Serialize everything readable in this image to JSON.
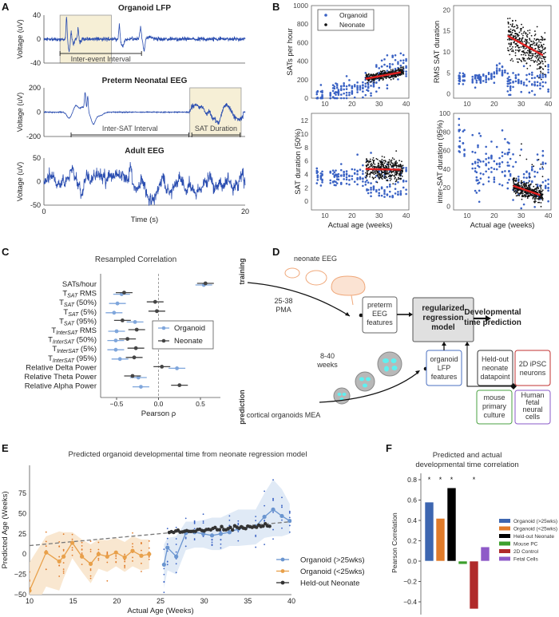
{
  "panel_labels": {
    "A": "A",
    "B": "B",
    "C": "C",
    "D": "D",
    "E": "E",
    "F": "F"
  },
  "chart_data": [
    {
      "id": "A1",
      "type": "line",
      "title": "Organoid LFP",
      "xlabel": "",
      "ylabel": "Voltage (uV)",
      "xlim": [
        0,
        20
      ],
      "ylim": [
        -40,
        40
      ],
      "yticks": [
        40,
        0,
        -40
      ],
      "annotations": [
        {
          "type": "bracket",
          "label": "Inter-event Interval",
          "x": [
            1.6,
            9.7
          ]
        }
      ],
      "highlight": [
        1.6,
        6.7
      ]
    },
    {
      "id": "A2",
      "type": "line",
      "title": "Preterm Neonatal EEG",
      "xlabel": "",
      "ylabel": "Voltage (uV)",
      "xlim": [
        0,
        20
      ],
      "ylim": [
        -200,
        200
      ],
      "yticks": [
        200,
        0,
        -200
      ],
      "annotations": [
        {
          "type": "bracket",
          "label": "Inter-SAT Interval",
          "x": [
            2.7,
            14.4
          ]
        },
        {
          "type": "bracket",
          "label": "SAT Duration",
          "x": [
            14.7,
            19.5
          ]
        }
      ],
      "highlight": [
        14.5,
        19.6
      ]
    },
    {
      "id": "A3",
      "type": "line",
      "title": "Adult EEG",
      "xlabel": "Time (s)",
      "ylabel": "Voltage (uV)",
      "xlim": [
        0,
        20
      ],
      "ylim": [
        -50,
        50
      ],
      "yticks": [
        50,
        0,
        -50
      ],
      "xticks": [
        0,
        20
      ]
    },
    {
      "id": "B1",
      "type": "scatter",
      "ylabel": "SATs per hour",
      "xlabel": "",
      "xlim": [
        5,
        41
      ],
      "ylim": [
        0,
        1000
      ],
      "xticks": [
        10,
        20,
        30,
        40
      ],
      "yticks": [
        0,
        200,
        400,
        600,
        800,
        1000
      ],
      "legend": {
        "position": "top-left",
        "entries": [
          "Organoid",
          "Neonate"
        ]
      },
      "neonate_fit": {
        "x": [
          25,
          38
        ],
        "y": [
          210,
          280
        ]
      }
    },
    {
      "id": "B2",
      "type": "scatter",
      "ylabel": "RMS SAT duration",
      "xlabel": "",
      "xlim": [
        5,
        41
      ],
      "ylim": [
        -1,
        21
      ],
      "xticks": [
        10,
        20,
        30,
        40
      ],
      "yticks": [
        0,
        5,
        10,
        15,
        20
      ],
      "neonate_fit": {
        "x": [
          25,
          38
        ],
        "y": [
          13.8,
          9.2
        ]
      }
    },
    {
      "id": "B3",
      "type": "scatter",
      "ylabel": "SAT duration (50%)",
      "xlabel": "Actual age (weeks)",
      "xlim": [
        5,
        41
      ],
      "ylim": [
        -1.3,
        13.1
      ],
      "xticks": [
        10,
        20,
        30,
        40
      ],
      "yticks": [
        0,
        2,
        4,
        6,
        8,
        10,
        12
      ],
      "neonate_fit": {
        "x": [
          25,
          38
        ],
        "y": [
          4.8,
          4.7
        ]
      }
    },
    {
      "id": "B4",
      "type": "scatter",
      "ylabel": "inter-SAT duration (95%)",
      "xlabel": "Actual age (weeks)",
      "xlim": [
        5,
        41
      ],
      "ylim": [
        -4,
        100
      ],
      "xticks": [
        10,
        20,
        30,
        40
      ],
      "yticks": [
        0,
        20,
        40,
        60,
        80,
        100
      ],
      "neonate_fit": {
        "x": [
          27,
          37
        ],
        "y": [
          22,
          12
        ]
      }
    },
    {
      "id": "C",
      "type": "scatter",
      "title": "Resampled Correlation",
      "xlabel": "Pearson ρ",
      "xlim": [
        -0.65,
        0.75
      ],
      "xticks": [
        -0.5,
        0.0,
        0.5
      ],
      "legend": {
        "position": "center-right",
        "entries": [
          "Organoid",
          "Neonate"
        ]
      },
      "rows": [
        {
          "main": "SATs/hour",
          "sub": "",
          "suffix": "",
          "organoid": 0.54,
          "neonate": 0.56
        },
        {
          "main": "T",
          "sub": "SAT",
          "suffix": " RMS",
          "organoid": -0.44,
          "neonate": -0.41
        },
        {
          "main": "T",
          "sub": "SAT",
          "suffix": " (50%)",
          "organoid": -0.49,
          "neonate": -0.04
        },
        {
          "main": "T",
          "sub": "SAT",
          "suffix": " (5%)",
          "organoid": -0.53,
          "neonate": -0.02
        },
        {
          "main": "T",
          "sub": "SAT",
          "suffix": " (95%)",
          "organoid": -0.28,
          "neonate": -0.43
        },
        {
          "main": "T",
          "sub": "InterSAT",
          "suffix": " RMS",
          "organoid": -0.5,
          "neonate": -0.26
        },
        {
          "main": "T",
          "sub": "InterSAT",
          "suffix": " (50%)",
          "organoid": -0.51,
          "neonate": -0.37
        },
        {
          "main": "T",
          "sub": "InterSAT",
          "suffix": " (5%)",
          "organoid": -0.51,
          "neonate": -0.27
        },
        {
          "main": "T",
          "sub": "InterSAT",
          "suffix": " (95%)",
          "organoid": -0.46,
          "neonate": -0.29
        },
        {
          "main": "Relative Delta Power",
          "sub": "",
          "suffix": "",
          "organoid": 0.22,
          "neonate": 0.04
        },
        {
          "main": "Relative Theta Power",
          "sub": "",
          "suffix": "",
          "organoid": -0.24,
          "neonate": -0.31
        },
        {
          "main": "Relative Alpha Power",
          "sub": "",
          "suffix": "",
          "organoid": -0.21,
          "neonate": 0.25
        }
      ],
      "error_halfwidth": 0.1
    },
    {
      "id": "E",
      "type": "line",
      "title": "Predicted organoid developmental time from neonate regression model",
      "xlabel": "Actual Age (Weeks)",
      "ylabel": "Predicted Age (Weeks)",
      "xlim": [
        10,
        40
      ],
      "ylim": [
        -50,
        110
      ],
      "xticks": [
        10,
        15,
        20,
        25,
        30,
        35,
        40
      ],
      "yticks": [
        -50,
        -25,
        0,
        25,
        50,
        75
      ],
      "legend": {
        "position": "bottom-right"
      },
      "identity_line": {
        "x": [
          10,
          40
        ],
        "y": [
          10.5,
          40
        ]
      },
      "series": [
        {
          "name": "Organoid (>25wks)",
          "color": "#6a95d0",
          "x": [
            25.4,
            25.8,
            26.8,
            27.9,
            28.9,
            29.9,
            30.9,
            31.9,
            32.9,
            33.9,
            35.9,
            36.9,
            37.9,
            38.9,
            39.8
          ],
          "y": [
            -13,
            8,
            -3,
            26,
            27,
            25,
            23,
            25,
            27,
            31,
            34,
            46,
            55,
            47,
            41
          ],
          "upper": [
            12,
            20,
            22,
            40,
            40,
            42,
            45,
            45,
            50,
            55,
            55,
            75,
            92,
            80,
            62
          ],
          "lower": [
            -42,
            -20,
            -25,
            5,
            8,
            8,
            5,
            5,
            10,
            10,
            12,
            20,
            22,
            22,
            25
          ]
        },
        {
          "name": "Organoid (<25wks)",
          "color": "#e8a04a",
          "x": [
            10,
            11.9,
            13.4,
            13.9,
            14.9,
            16,
            17,
            17.9,
            18.9,
            19.9,
            20.9,
            21.8,
            22.8,
            23.7
          ],
          "y": [
            -45,
            2,
            -9,
            -3,
            14,
            -3,
            -12,
            0,
            -3,
            2,
            -4,
            4,
            -2,
            0
          ],
          "upper": [
            -10,
            22,
            28,
            27,
            27,
            18,
            12,
            18,
            17,
            20,
            15,
            22,
            18,
            18
          ],
          "lower": [
            -80,
            -40,
            -45,
            -30,
            -5,
            -22,
            -36,
            -18,
            -22,
            -15,
            -22,
            -15,
            -20,
            -18
          ]
        },
        {
          "name": "Held-out Neonate",
          "color": "#333333",
          "x_range": [
            26,
            37.5
          ],
          "y_trend": [
            27,
            35
          ]
        }
      ]
    },
    {
      "id": "F",
      "type": "bar",
      "title": "Predicted and actual developmental time correlation",
      "xlabel": "",
      "ylabel": "Pearson Correlation",
      "ylim": [
        -0.48,
        0.86
      ],
      "yticks": [
        0.8,
        0.6,
        0.4,
        0.2,
        0.0,
        -0.2,
        -0.4
      ],
      "legend": {
        "position": "right"
      },
      "categories": [
        "Organoid (>25wks)",
        "Organoid (<25wks)",
        "Held-out Neonate",
        "Mouse PC",
        "2D Control",
        "Fetal Cells"
      ],
      "values": [
        0.58,
        0.42,
        0.72,
        -0.03,
        -0.47,
        0.14
      ],
      "significant": [
        true,
        true,
        true,
        false,
        true,
        false
      ],
      "significance_marker": "*",
      "colors": [
        "#3d66b0",
        "#e07b2a",
        "#000000",
        "#3ca02c",
        "#b02a2a",
        "#8e5ac8"
      ]
    }
  ],
  "diagram": {
    "neonate_eeg": "neonate EEG",
    "pma": [
      "25-38",
      "PMA"
    ],
    "training": "training",
    "prediction": "prediction",
    "weeks": [
      "8-40",
      "weeks"
    ],
    "organoids_mea": "cortical organoids MEA",
    "preterm_box": [
      "preterm",
      "EEG",
      "features"
    ],
    "model_box": [
      "regularized",
      "regression",
      "model"
    ],
    "output": [
      "Developmental",
      "time prediction"
    ],
    "lfp_box": [
      "organoid",
      "LFP",
      "features"
    ],
    "heldout_box": [
      "Held-out",
      "neonate",
      "datapoint"
    ],
    "ipsc_box": [
      "2D iPSC",
      "neurons"
    ],
    "mouse_box": [
      "mouse",
      "primary",
      "culture"
    ],
    "human_box": [
      "Human",
      "fetal",
      "neural",
      "cells"
    ],
    "colors": {
      "brain": "#f0a87a",
      "organoid_glow": "#3fe0e0",
      "model_fill": "#e0e0e0",
      "lfp": "#4a6fc0",
      "heldout": "#333333",
      "ipsc": "#c03030",
      "mouse": "#4aa040",
      "human": "#8a5ac8"
    }
  }
}
